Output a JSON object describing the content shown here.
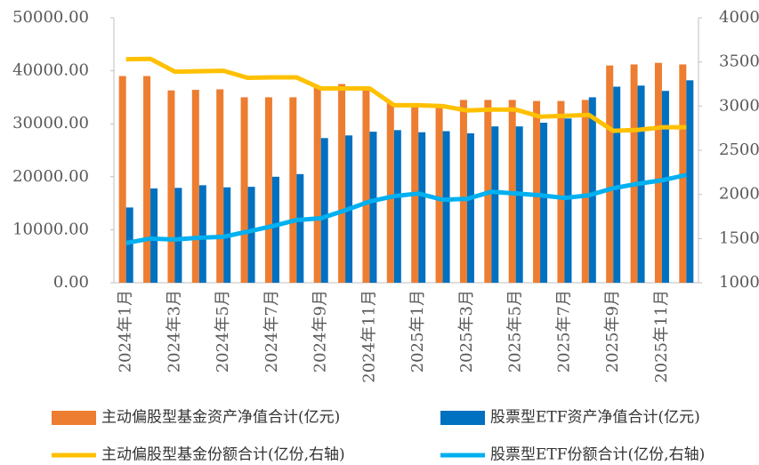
{
  "chart_data": {
    "type": "combo",
    "categories": [
      "2024年1月",
      null,
      "2024年3月",
      null,
      "2024年5月",
      null,
      "2024年7月",
      null,
      "2024年9月",
      null,
      "2024年11月",
      null,
      "2025年1月",
      null,
      "2025年3月",
      null,
      "2025年5月",
      null,
      "2025年7月",
      null,
      "2025年9月",
      null,
      "2025年11月",
      null
    ],
    "series": [
      {
        "name": "主动偏股型基金资产净值合计(亿元)",
        "type": "bar",
        "color": "#ED7D31",
        "values": [
          39000,
          39000,
          36300,
          36400,
          36500,
          35000,
          35000,
          35000,
          37000,
          37500,
          37000,
          34000,
          33500,
          33500,
          34500,
          34500,
          34500,
          34300,
          34300,
          34500,
          41000,
          41200,
          41500,
          41200
        ]
      },
      {
        "name": "股票型ETF资产净值合计(亿元)",
        "type": "bar",
        "color": "#0070C0",
        "values": [
          14200,
          17800,
          17900,
          18400,
          18000,
          18100,
          20000,
          20500,
          27300,
          27800,
          28500,
          28800,
          28400,
          28600,
          28200,
          29500,
          29500,
          30200,
          31000,
          35000,
          37000,
          37200,
          36200,
          38200
        ]
      },
      {
        "name": "主动偏股型基金份额合计(亿份,右轴)",
        "type": "line",
        "axis": "y2",
        "color": "#FFC000",
        "values": [
          3530,
          3535,
          3390,
          3395,
          3400,
          3320,
          3325,
          3325,
          3200,
          3200,
          3200,
          3010,
          3010,
          3000,
          2950,
          2960,
          2960,
          2880,
          2890,
          2900,
          2720,
          2730,
          2760,
          2760
        ]
      },
      {
        "name": "股票型ETF份额合计(亿份,右轴)",
        "type": "line",
        "axis": "y2",
        "color": "#00B0F0",
        "values": [
          1450,
          1500,
          1490,
          1510,
          1520,
          1580,
          1640,
          1710,
          1730,
          1820,
          1920,
          1980,
          2010,
          1940,
          1950,
          2030,
          2010,
          1990,
          1960,
          1990,
          2070,
          2120,
          2160,
          2220
        ]
      }
    ],
    "ylim": [
      0,
      50000
    ],
    "yticks": [
      {
        "value": 0,
        "label": "0.00"
      },
      {
        "value": 10000,
        "label": "10000.00"
      },
      {
        "value": 20000,
        "label": "20000.00"
      },
      {
        "value": 30000,
        "label": "30000.00"
      },
      {
        "value": 40000,
        "label": "40000.00"
      },
      {
        "value": 50000,
        "label": "50000.00"
      }
    ],
    "y2lim": [
      1000,
      4000
    ],
    "y2ticks": [
      1000,
      1500,
      2000,
      2500,
      3000,
      3500,
      4000
    ],
    "legend": "bottom"
  }
}
